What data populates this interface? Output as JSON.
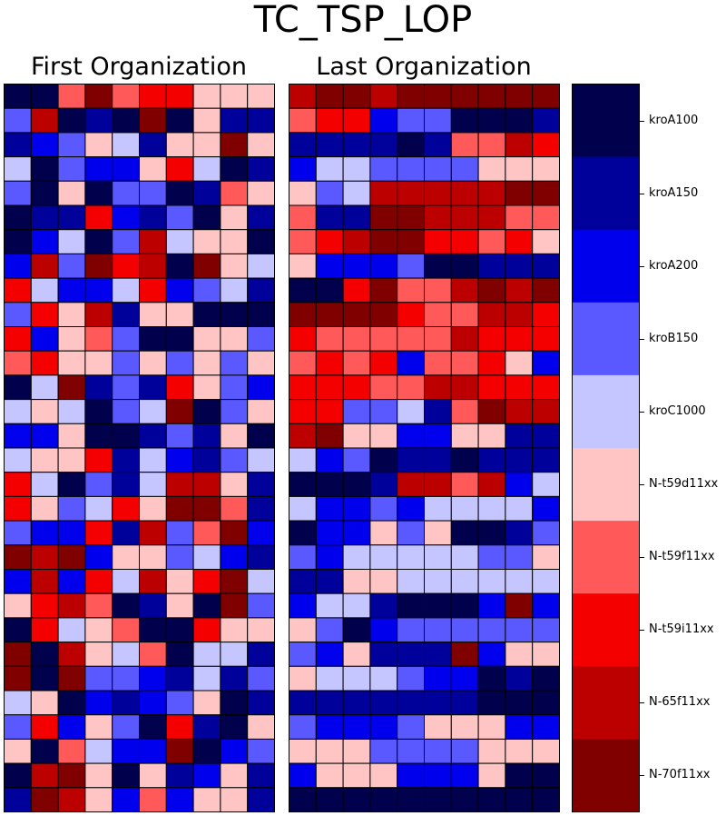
{
  "chart_data": {
    "type": "heatmap",
    "title": "TC_TSP_LOP",
    "colorbar": {
      "labels": [
        "kroA100",
        "kroA150",
        "kroA200",
        "kroB150",
        "kroC1000",
        "N-t59d11xx",
        "N-t59f11xx",
        "N-t59i11xx",
        "N-65f11xx",
        "N-70f11xx"
      ],
      "colors": [
        "#00004c",
        "#00009b",
        "#0000ec",
        "#5959ff",
        "#c5c5ff",
        "#ffc5c5",
        "#ff5959",
        "#f50000",
        "#bc0000",
        "#800000"
      ]
    },
    "panels": [
      {
        "title": "First Organization",
        "rows": 30,
        "cols": 10,
        "matrix": [
          [
            0,
            0,
            6,
            9,
            6,
            7,
            7,
            5,
            5,
            5
          ],
          [
            3,
            8,
            0,
            1,
            0,
            9,
            0,
            5,
            1,
            1
          ],
          [
            1,
            2,
            3,
            5,
            4,
            1,
            5,
            5,
            9,
            5
          ],
          [
            4,
            0,
            3,
            2,
            2,
            5,
            7,
            4,
            0,
            1
          ],
          [
            3,
            0,
            5,
            0,
            3,
            3,
            0,
            1,
            6,
            5
          ],
          [
            0,
            1,
            1,
            7,
            2,
            1,
            3,
            0,
            5,
            1
          ],
          [
            0,
            2,
            4,
            0,
            3,
            8,
            4,
            5,
            5,
            0
          ],
          [
            2,
            8,
            3,
            9,
            7,
            8,
            0,
            9,
            5,
            4
          ],
          [
            7,
            4,
            2,
            2,
            4,
            7,
            2,
            3,
            4,
            1
          ],
          [
            3,
            7,
            5,
            8,
            1,
            5,
            5,
            0,
            0,
            0
          ],
          [
            7,
            2,
            5,
            6,
            3,
            0,
            0,
            5,
            5,
            3
          ],
          [
            6,
            7,
            5,
            5,
            3,
            5,
            3,
            5,
            3,
            5
          ],
          [
            0,
            4,
            9,
            1,
            3,
            1,
            7,
            5,
            3,
            2
          ],
          [
            4,
            5,
            4,
            0,
            3,
            4,
            9,
            0,
            3,
            5
          ],
          [
            2,
            2,
            5,
            0,
            0,
            1,
            3,
            1,
            5,
            0
          ],
          [
            4,
            5,
            5,
            7,
            1,
            4,
            2,
            1,
            3,
            4
          ],
          [
            7,
            4,
            0,
            3,
            1,
            4,
            8,
            8,
            5,
            1
          ],
          [
            7,
            5,
            3,
            4,
            7,
            5,
            9,
            9,
            6,
            1
          ],
          [
            3,
            2,
            2,
            7,
            1,
            8,
            3,
            6,
            9,
            2
          ],
          [
            9,
            8,
            9,
            2,
            5,
            5,
            3,
            4,
            2,
            1
          ],
          [
            2,
            8,
            2,
            7,
            4,
            8,
            5,
            7,
            9,
            4
          ],
          [
            5,
            7,
            8,
            6,
            0,
            1,
            5,
            0,
            9,
            3
          ],
          [
            0,
            7,
            4,
            5,
            6,
            0,
            0,
            7,
            5,
            5
          ],
          [
            9,
            0,
            8,
            5,
            4,
            6,
            0,
            4,
            4,
            1
          ],
          [
            9,
            0,
            9,
            3,
            3,
            2,
            1,
            4,
            1,
            3
          ],
          [
            4,
            5,
            0,
            2,
            1,
            2,
            3,
            5,
            0,
            1
          ],
          [
            3,
            7,
            2,
            5,
            3,
            0,
            7,
            1,
            0,
            5
          ],
          [
            5,
            0,
            6,
            4,
            2,
            2,
            9,
            0,
            2,
            3
          ],
          [
            0,
            8,
            9,
            5,
            0,
            5,
            1,
            2,
            5,
            1
          ],
          [
            1,
            9,
            8,
            5,
            2,
            6,
            2,
            5,
            5,
            1
          ]
        ]
      },
      {
        "title": "Last Organization",
        "rows": 30,
        "cols": 10,
        "matrix": [
          [
            8,
            9,
            9,
            8,
            9,
            9,
            9,
            9,
            9,
            9
          ],
          [
            6,
            7,
            7,
            2,
            3,
            3,
            0,
            0,
            0,
            1
          ],
          [
            1,
            1,
            1,
            1,
            0,
            1,
            6,
            6,
            8,
            7
          ],
          [
            2,
            4,
            4,
            3,
            3,
            3,
            3,
            5,
            5,
            5
          ],
          [
            5,
            3,
            4,
            8,
            8,
            8,
            8,
            8,
            9,
            9
          ],
          [
            6,
            1,
            1,
            9,
            9,
            8,
            8,
            8,
            6,
            6
          ],
          [
            6,
            7,
            8,
            9,
            9,
            7,
            7,
            6,
            7,
            5
          ],
          [
            5,
            2,
            2,
            2,
            3,
            0,
            0,
            1,
            1,
            1
          ],
          [
            0,
            0,
            7,
            9,
            6,
            6,
            8,
            9,
            8,
            9
          ],
          [
            9,
            9,
            9,
            9,
            7,
            6,
            6,
            8,
            8,
            7
          ],
          [
            7,
            6,
            6,
            6,
            6,
            6,
            8,
            7,
            7,
            7
          ],
          [
            6,
            7,
            6,
            7,
            2,
            6,
            6,
            7,
            5,
            2
          ],
          [
            7,
            7,
            7,
            6,
            6,
            8,
            8,
            7,
            7,
            7
          ],
          [
            7,
            7,
            3,
            3,
            4,
            1,
            6,
            9,
            8,
            8
          ],
          [
            8,
            9,
            5,
            5,
            2,
            2,
            5,
            5,
            1,
            1
          ],
          [
            4,
            2,
            3,
            0,
            1,
            1,
            0,
            1,
            1,
            1
          ],
          [
            0,
            0,
            0,
            1,
            8,
            8,
            6,
            8,
            2,
            4
          ],
          [
            4,
            2,
            2,
            3,
            2,
            4,
            4,
            4,
            4,
            2
          ],
          [
            0,
            2,
            2,
            5,
            3,
            5,
            0,
            0,
            1,
            3
          ],
          [
            3,
            2,
            4,
            4,
            4,
            4,
            4,
            3,
            3,
            5
          ],
          [
            1,
            1,
            5,
            5,
            4,
            4,
            4,
            4,
            4,
            4
          ],
          [
            2,
            4,
            4,
            1,
            0,
            0,
            0,
            2,
            9,
            2
          ],
          [
            5,
            3,
            0,
            2,
            3,
            3,
            3,
            3,
            3,
            3
          ],
          [
            3,
            2,
            5,
            1,
            1,
            1,
            9,
            2,
            5,
            5
          ],
          [
            5,
            4,
            4,
            4,
            3,
            2,
            2,
            0,
            1,
            0
          ],
          [
            1,
            1,
            1,
            1,
            1,
            1,
            1,
            0,
            0,
            0
          ],
          [
            3,
            2,
            2,
            2,
            3,
            5,
            5,
            5,
            2,
            2
          ],
          [
            5,
            5,
            5,
            3,
            3,
            3,
            3,
            5,
            5,
            5
          ],
          [
            2,
            5,
            5,
            5,
            2,
            2,
            2,
            5,
            0,
            0
          ],
          [
            0,
            0,
            0,
            0,
            0,
            0,
            0,
            0,
            0,
            0
          ]
        ]
      }
    ]
  }
}
